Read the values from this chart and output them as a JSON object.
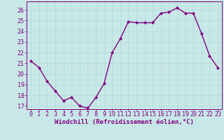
{
  "x": [
    0,
    1,
    2,
    3,
    4,
    5,
    6,
    7,
    8,
    9,
    10,
    11,
    12,
    13,
    14,
    15,
    16,
    17,
    18,
    19,
    20,
    21,
    22,
    23
  ],
  "y": [
    21.2,
    20.6,
    19.3,
    18.4,
    17.5,
    17.8,
    17.0,
    16.8,
    17.8,
    19.1,
    22.0,
    23.3,
    24.9,
    24.8,
    24.8,
    24.8,
    25.7,
    25.8,
    26.2,
    25.7,
    25.7,
    23.8,
    21.7,
    20.6
  ],
  "line_color": "#800080",
  "bg_color": "#c8e8e8",
  "xlabel": "Windchill (Refroidissement éolien,°C)",
  "ylim": [
    16.7,
    26.8
  ],
  "xlim": [
    -0.5,
    23.5
  ],
  "yticks": [
    17,
    18,
    19,
    20,
    21,
    22,
    23,
    24,
    25,
    26
  ],
  "xticks": [
    0,
    1,
    2,
    3,
    4,
    5,
    6,
    7,
    8,
    9,
    10,
    11,
    12,
    13,
    14,
    15,
    16,
    17,
    18,
    19,
    20,
    21,
    22,
    23
  ],
  "grid_color": "#b0d8d8",
  "marker": "D",
  "markersize": 2,
  "linewidth": 1.0,
  "tick_fontsize": 6.0,
  "xlabel_fontsize": 6.5
}
